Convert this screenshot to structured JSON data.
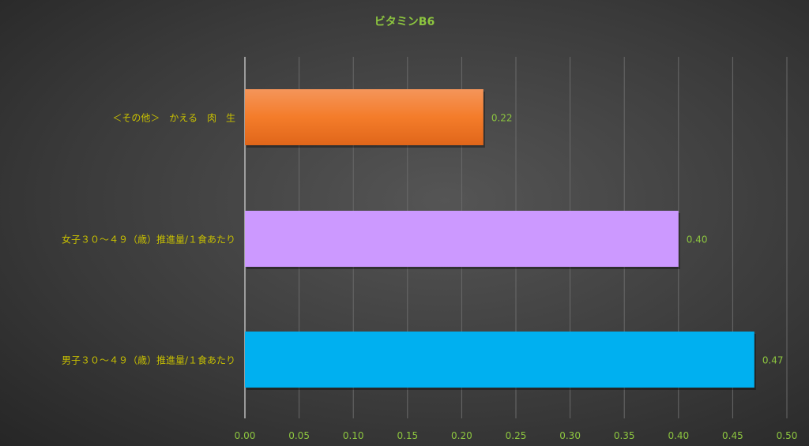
{
  "chart_data": {
    "type": "bar",
    "orientation": "horizontal",
    "title": "ビタミンB6",
    "categories": [
      "＜その他＞　かえる　肉　生",
      "女子３０～４９（歳）推進量/１食あたり",
      "男子３０～４９（歳）推進量/１食あたり"
    ],
    "values": [
      0.22,
      0.4,
      0.47
    ],
    "data_labels": [
      "0.22",
      "0.40",
      "0.47"
    ],
    "bar_colors": [
      "#f07c2c",
      "#cc99ff",
      "#00b0f0"
    ],
    "xlim": [
      0,
      0.5
    ],
    "xticks": [
      "0.00",
      "0.05",
      "0.10",
      "0.15",
      "0.20",
      "0.25",
      "0.30",
      "0.35",
      "0.40",
      "0.45",
      "0.50"
    ],
    "grid": true,
    "legend": "none",
    "colors": {
      "title": "#8dc63f",
      "category_labels": "#c8c000",
      "tick_labels": "#8dc63f",
      "data_labels": "#8dc63f"
    }
  }
}
